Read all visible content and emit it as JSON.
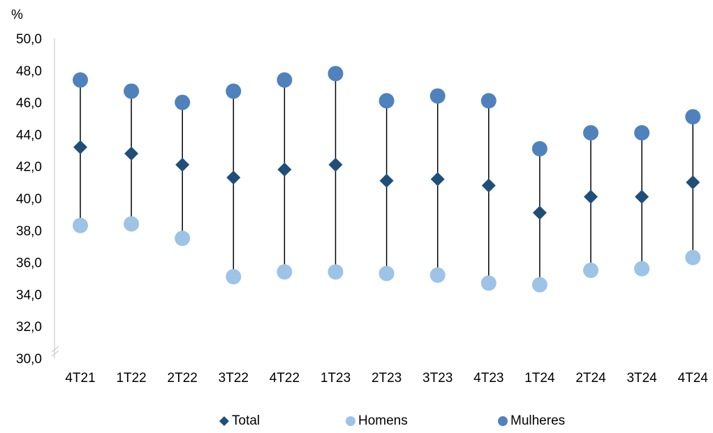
{
  "chart_data": {
    "type": "scatter",
    "unit": "%",
    "categories": [
      "4T21",
      "1T22",
      "2T22",
      "3T22",
      "4T22",
      "1T23",
      "2T23",
      "3T23",
      "4T23",
      "1T24",
      "2T24",
      "3T24",
      "4T24"
    ],
    "ylim": [
      30,
      50
    ],
    "yticks": [
      "30,0",
      "32,0",
      "34,0",
      "36,0",
      "38,0",
      "40,0",
      "42,0",
      "44,0",
      "46,0",
      "48,0",
      "50,0"
    ],
    "series": [
      {
        "name": "Total",
        "marker": "diamond",
        "color": "#1f4e79",
        "values": [
          43.2,
          42.8,
          42.1,
          41.3,
          41.8,
          42.1,
          41.1,
          41.2,
          40.8,
          39.1,
          40.1,
          40.1,
          41.0
        ]
      },
      {
        "name": "Homens",
        "marker": "circle",
        "color": "#9dc3e6",
        "values": [
          38.3,
          38.4,
          37.5,
          35.1,
          35.4,
          35.4,
          35.3,
          35.2,
          34.7,
          34.6,
          35.5,
          35.6,
          36.3
        ]
      },
      {
        "name": "Mulheres",
        "marker": "circle",
        "color": "#4f81bd",
        "values": [
          47.4,
          46.7,
          46.0,
          46.7,
          47.4,
          47.8,
          46.1,
          46.4,
          46.1,
          43.1,
          44.1,
          44.1,
          45.1
        ]
      }
    ],
    "legend_position": "bottom",
    "grid": false
  }
}
